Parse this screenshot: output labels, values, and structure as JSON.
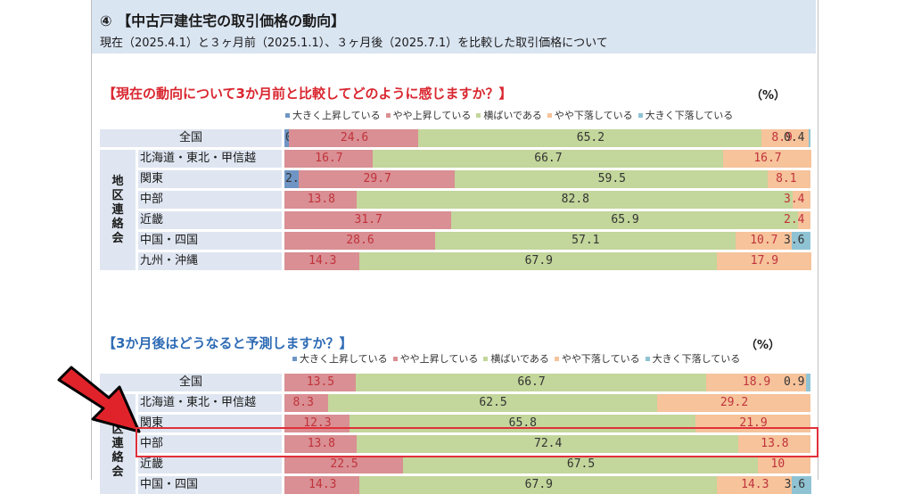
{
  "header": {
    "title": "④ 【中古戸建住宅の取引価格の動向】",
    "subtitle": "現在（2025.4.1）と３ヶ月前（2025.1.1）、３ヶ月後（2025.7.1）を比較した取引価格について"
  },
  "colors": {
    "up_big": "#6f95c4",
    "up_small": "#d98f93",
    "flat": "#c3d69b",
    "down_small": "#f6c39b",
    "down_big": "#8fc3d4",
    "num_red": "#c0333c",
    "num_dark": "#333333",
    "arrow": "#e0232a",
    "highlight": "#e0303a"
  },
  "chart_data": [
    {
      "type": "bar",
      "orientation": "horizontal-stacked-100",
      "title": "【現在の動向について3か月前と比較してどのように感じますか？】",
      "unit_label": "（%）",
      "group_label": "地区連絡会",
      "legend": [
        "大きく上昇している",
        "やや上昇している",
        "横ばいである",
        "やや下落している",
        "大きく下落している"
      ],
      "categories": [
        "全国",
        "北海道・東北・甲信越",
        "関東",
        "中部",
        "近畿",
        "中国・四国",
        "九州・沖縄"
      ],
      "series": [
        {
          "name": "大きく上昇している",
          "values": [
            0.9,
            0,
            2.7,
            0,
            0,
            0,
            0
          ]
        },
        {
          "name": "やや上昇している",
          "values": [
            24.6,
            16.7,
            29.7,
            13.8,
            31.7,
            28.6,
            14.3
          ]
        },
        {
          "name": "横ばいである",
          "values": [
            65.2,
            66.7,
            59.5,
            82.8,
            65.9,
            57.1,
            67.9
          ]
        },
        {
          "name": "やや下落している",
          "values": [
            8.9,
            16.7,
            8.1,
            3.4,
            2.4,
            10.7,
            17.9
          ]
        },
        {
          "name": "大きく下落している",
          "values": [
            0.4,
            0,
            0,
            0,
            0,
            3.6,
            0
          ]
        }
      ]
    },
    {
      "type": "bar",
      "orientation": "horizontal-stacked-100",
      "title": "【3か月後はどうなると予測しますか？】",
      "unit_label": "（%）",
      "group_label": "地区連絡会",
      "legend": [
        "大きく上昇している",
        "やや上昇している",
        "横ばいである",
        "やや下落している",
        "大きく下落している"
      ],
      "categories": [
        "全国",
        "北海道・東北・甲信越",
        "関東",
        "中部",
        "近畿",
        "中国・四国"
      ],
      "series": [
        {
          "name": "大きく上昇している",
          "values": [
            0,
            0,
            0,
            0,
            0,
            0
          ]
        },
        {
          "name": "やや上昇している",
          "values": [
            13.5,
            8.3,
            12.3,
            13.8,
            22.5,
            14.3
          ]
        },
        {
          "name": "横ばいである",
          "values": [
            66.7,
            62.5,
            65.8,
            72.4,
            67.5,
            67.9
          ]
        },
        {
          "name": "やや下落している",
          "values": [
            18.9,
            29.2,
            21.9,
            13.8,
            10.0,
            14.3
          ]
        },
        {
          "name": "大きく下落している",
          "values": [
            0.9,
            0,
            0,
            0,
            0,
            3.6
          ]
        }
      ],
      "highlighted_category": "中部"
    }
  ]
}
